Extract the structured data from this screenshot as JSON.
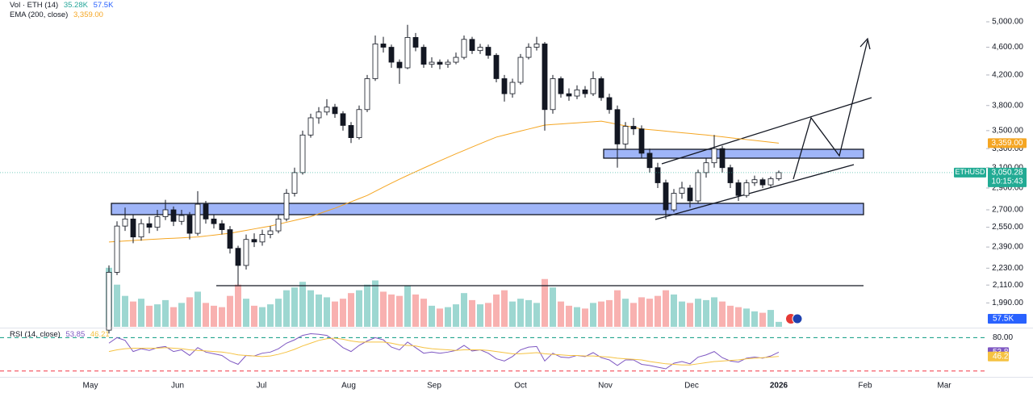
{
  "chart_data": [
    {
      "type": "candlestick",
      "log_scale": true,
      "ylim": [
        1840,
        5370
      ],
      "yticks": [
        {
          "value": 5000,
          "label": "5,000.00"
        },
        {
          "value": 4600,
          "label": "4,600.00"
        },
        {
          "value": 4200,
          "label": "4,200.00"
        },
        {
          "value": 3800,
          "label": "3,800.00"
        },
        {
          "value": 3500,
          "label": "3,500.00"
        },
        {
          "value": 3300,
          "label": "3,300.00"
        },
        {
          "value": 3100,
          "label": "3,100.00"
        },
        {
          "value": 2900,
          "label": "2,900.00"
        },
        {
          "value": 2700,
          "label": "2,700.00"
        },
        {
          "value": 2550,
          "label": "2,550.00"
        },
        {
          "value": 2390,
          "label": "2,390.00"
        },
        {
          "value": 2230,
          "label": "2,230.00"
        },
        {
          "value": 2110,
          "label": "2,110.00"
        },
        {
          "value": 1990,
          "label": "1,990.00"
        }
      ],
      "xticks": [
        "May",
        "Jun",
        "Jul",
        "Aug",
        "Sep",
        "Oct",
        "Nov",
        "Dec",
        "2026",
        "Feb",
        "Mar"
      ],
      "series": [
        {
          "name": "ETHUSD",
          "up_color": "#ffffff",
          "down_color": "#131722",
          "label_color": "#22ab94",
          "last": {
            "value": 3050.28,
            "label": "3,050.28"
          },
          "countdown": "10:15:43",
          "ohlc": [
            [
              1820,
              2250,
              1800,
              2200
            ],
            [
              2200,
              2600,
              2180,
              2560
            ],
            [
              2560,
              2720,
              2520,
              2620
            ],
            [
              2620,
              2660,
              2420,
              2470
            ],
            [
              2470,
              2620,
              2440,
              2580
            ],
            [
              2580,
              2640,
              2500,
              2550
            ],
            [
              2550,
              2700,
              2520,
              2640
            ],
            [
              2640,
              2790,
              2610,
              2700
            ],
            [
              2700,
              2730,
              2560,
              2600
            ],
            [
              2600,
              2700,
              2570,
              2650
            ],
            [
              2650,
              2680,
              2450,
              2500
            ],
            [
              2500,
              2870,
              2480,
              2750
            ],
            [
              2750,
              2780,
              2580,
              2620
            ],
            [
              2620,
              2660,
              2540,
              2580
            ],
            [
              2580,
              2610,
              2490,
              2530
            ],
            [
              2530,
              2560,
              2340,
              2380
            ],
            [
              2380,
              2400,
              2110,
              2250
            ],
            [
              2250,
              2490,
              2220,
              2450
            ],
            [
              2450,
              2500,
              2390,
              2430
            ],
            [
              2430,
              2530,
              2400,
              2490
            ],
            [
              2490,
              2560,
              2460,
              2520
            ],
            [
              2520,
              2660,
              2500,
              2620
            ],
            [
              2620,
              2890,
              2600,
              2850
            ],
            [
              2850,
              3100,
              2820,
              3050
            ],
            [
              3050,
              3500,
              3030,
              3450
            ],
            [
              3450,
              3700,
              3420,
              3650
            ],
            [
              3650,
              3780,
              3580,
              3720
            ],
            [
              3720,
              3880,
              3680,
              3780
            ],
            [
              3780,
              3820,
              3650,
              3700
            ],
            [
              3700,
              3730,
              3500,
              3560
            ],
            [
              3560,
              3600,
              3360,
              3420
            ],
            [
              3420,
              3800,
              3400,
              3750
            ],
            [
              3750,
              4200,
              3720,
              4150
            ],
            [
              4150,
              4780,
              4120,
              4650
            ],
            [
              4650,
              4760,
              4520,
              4600
            ],
            [
              4600,
              4640,
              4300,
              4380
            ],
            [
              4380,
              4420,
              4080,
              4300
            ],
            [
              4300,
              4950,
              4280,
              4750
            ],
            [
              4750,
              4820,
              4540,
              4600
            ],
            [
              4600,
              4640,
              4300,
              4350
            ],
            [
              4350,
              4450,
              4300,
              4380
            ],
            [
              4380,
              4420,
              4280,
              4350
            ],
            [
              4350,
              4420,
              4300,
              4380
            ],
            [
              4380,
              4520,
              4350,
              4450
            ],
            [
              4450,
              4780,
              4420,
              4720
            ],
            [
              4720,
              4760,
              4500,
              4550
            ],
            [
              4550,
              4650,
              4500,
              4600
            ],
            [
              4600,
              4640,
              4430,
              4480
            ],
            [
              4480,
              4510,
              4100,
              4150
            ],
            [
              4150,
              4200,
              3850,
              3950
            ],
            [
              3950,
              4150,
              3900,
              4100
            ],
            [
              4100,
              4500,
              4070,
              4450
            ],
            [
              4450,
              4660,
              4420,
              4600
            ],
            [
              4600,
              4760,
              4550,
              4650
            ],
            [
              4650,
              4680,
              3500,
              3750
            ],
            [
              3750,
              4200,
              3700,
              4150
            ],
            [
              4150,
              4180,
              3900,
              3950
            ],
            [
              3950,
              4020,
              3860,
              3920
            ],
            [
              3920,
              4060,
              3880,
              4000
            ],
            [
              4000,
              4050,
              3900,
              3950
            ],
            [
              3950,
              4250,
              3920,
              4150
            ],
            [
              4150,
              4180,
              3860,
              3900
            ],
            [
              3900,
              3950,
              3700,
              3750
            ],
            [
              3750,
              3800,
              3100,
              3350
            ],
            [
              3350,
              3600,
              3300,
              3550
            ],
            [
              3550,
              3650,
              3450,
              3520
            ],
            [
              3520,
              3560,
              3200,
              3250
            ],
            [
              3250,
              3300,
              3050,
              3100
            ],
            [
              3100,
              3150,
              2900,
              2950
            ],
            [
              2950,
              2980,
              2620,
              2700
            ],
            [
              2700,
              2890,
              2680,
              2850
            ],
            [
              2850,
              2960,
              2800,
              2900
            ],
            [
              2900,
              2930,
              2720,
              2780
            ],
            [
              2780,
              3080,
              2760,
              3050
            ],
            [
              3050,
              3200,
              3000,
              3150
            ],
            [
              3150,
              3450,
              3100,
              3300
            ],
            [
              3300,
              3330,
              3050,
              3100
            ],
            [
              3100,
              3130,
              2900,
              2950
            ],
            [
              2950,
              2980,
              2780,
              2830
            ],
            [
              2830,
              2980,
              2810,
              2950
            ],
            [
              2950,
              3020,
              2920,
              2980
            ],
            [
              2980,
              3000,
              2900,
              2930
            ],
            [
              2930,
              3010,
              2910,
              2990
            ],
            [
              2990,
              3070,
              2970,
              3050.28
            ]
          ]
        },
        {
          "name": "EMA (200, close)",
          "color": "#f5a623",
          "last": {
            "value": 3359,
            "label": "3,359.00"
          },
          "values": [
            2430,
            2434,
            2438,
            2442,
            2446,
            2450,
            2453,
            2457,
            2460,
            2463,
            2467,
            2470,
            2478,
            2485,
            2493,
            2500,
            2512,
            2524,
            2536,
            2548,
            2560,
            2576,
            2592,
            2608,
            2624,
            2640,
            2665,
            2690,
            2714,
            2743,
            2772,
            2801,
            2830,
            2869,
            2908,
            2947,
            2985,
            3022,
            3059,
            3096,
            3133,
            3170,
            3207,
            3244,
            3280,
            3317,
            3353,
            3390,
            3426,
            3449,
            3472,
            3495,
            3518,
            3541,
            3564,
            3571,
            3577,
            3584,
            3590,
            3597,
            3603,
            3610,
            3592,
            3574,
            3556,
            3538,
            3520,
            3511,
            3503,
            3494,
            3485,
            3476,
            3468,
            3459,
            3450,
            3440,
            3430,
            3419,
            3409,
            3399,
            3389,
            3379,
            3369,
            3359
          ]
        }
      ]
    },
    {
      "type": "bar",
      "title": "Vol · ETH (14)",
      "ylim": [
        0,
        660
      ],
      "up_color": "#26a69a",
      "down_color": "#ef5350",
      "last": {
        "value": 35.28,
        "label": "35.28K"
      },
      "ma": {
        "value": 57.5,
        "label": "57.5K"
      },
      "ma_color": "#2962ff",
      "values": [
        420,
        300,
        220,
        180,
        200,
        150,
        160,
        190,
        140,
        170,
        210,
        250,
        170,
        150,
        140,
        220,
        300,
        200,
        150,
        140,
        160,
        200,
        260,
        280,
        320,
        260,
        230,
        210,
        180,
        200,
        240,
        260,
        300,
        330,
        250,
        230,
        220,
        290,
        230,
        200,
        150,
        130,
        140,
        160,
        240,
        190,
        160,
        170,
        230,
        260,
        180,
        200,
        190,
        170,
        340,
        280,
        180,
        150,
        140,
        130,
        170,
        180,
        190,
        260,
        200,
        170,
        210,
        200,
        220,
        260,
        230,
        180,
        170,
        200,
        190,
        210,
        180,
        150,
        140,
        130,
        110,
        100,
        120,
        35.28
      ]
    },
    {
      "type": "line",
      "title": "RSI (14, close)",
      "ylim": [
        11,
        95
      ],
      "levels": [
        20,
        80
      ],
      "level_colors": [
        "#f23645",
        "#089981"
      ],
      "yticks": [
        {
          "value": 80,
          "label": "80.00"
        }
      ],
      "series": [
        {
          "color": "#7e57c2",
          "last": 53.85,
          "values": [
            70,
            80,
            75,
            55,
            60,
            57,
            62,
            64,
            55,
            58,
            48,
            62,
            54,
            51,
            48,
            38,
            32,
            48,
            47,
            52,
            54,
            60,
            70,
            76,
            84,
            87,
            86,
            84,
            74,
            62,
            55,
            66,
            74,
            80,
            76,
            63,
            58,
            72,
            62,
            52,
            54,
            52,
            54,
            57,
            66,
            56,
            58,
            52,
            42,
            38,
            46,
            58,
            63,
            64,
            38,
            52,
            45,
            44,
            48,
            46,
            53,
            44,
            40,
            30,
            40,
            40,
            32,
            30,
            27,
            24,
            34,
            37,
            33,
            45,
            49,
            55,
            44,
            38,
            36,
            43,
            45,
            43,
            47,
            53.85
          ]
        },
        {
          "color": "#f5c242",
          "last": 46.21,
          "values": [
            55,
            58,
            60,
            61,
            61,
            61,
            61,
            62,
            61,
            60,
            58,
            57,
            56,
            55,
            54,
            52,
            49,
            48,
            47,
            46,
            47,
            50,
            54,
            59,
            65,
            70,
            75,
            78,
            79,
            77,
            74,
            72,
            72,
            72,
            72,
            70,
            67,
            66,
            65,
            62,
            60,
            59,
            58,
            57,
            58,
            58,
            58,
            57,
            55,
            53,
            51,
            51,
            52,
            53,
            51,
            50,
            49,
            48,
            48,
            47,
            47,
            46,
            45,
            43,
            42,
            41,
            40,
            37,
            35,
            33,
            32,
            31,
            31,
            33,
            35,
            37,
            38,
            39,
            40,
            42,
            43,
            44,
            45,
            46.21
          ]
        }
      ]
    }
  ]
}
